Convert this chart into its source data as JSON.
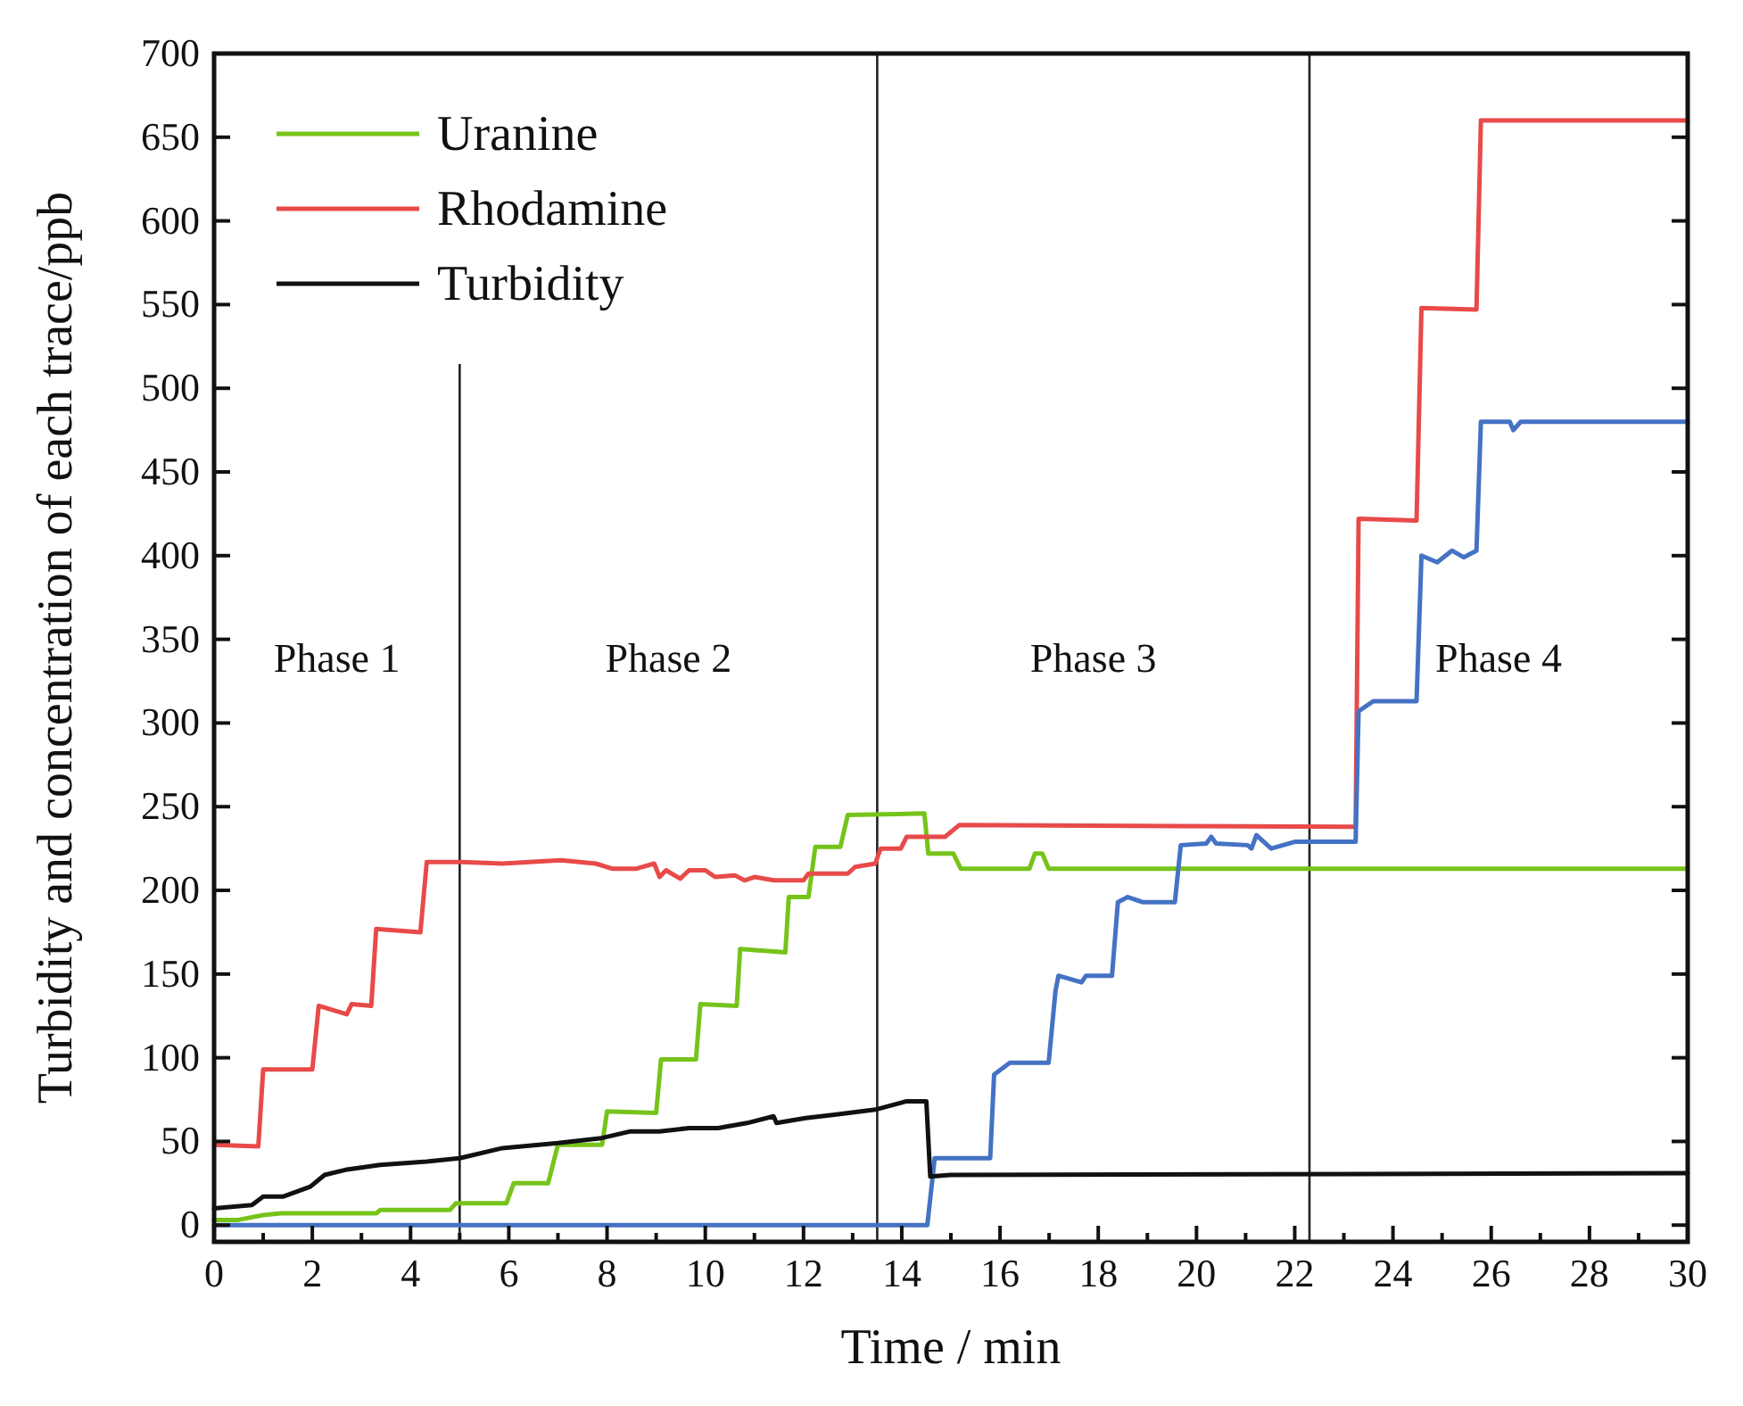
{
  "chart_data": {
    "type": "line",
    "xlabel": "Time / min",
    "ylabel": "Turbidity and concentration of each trace/ppb",
    "xlim": [
      0,
      30
    ],
    "ylim": [
      -10,
      700
    ],
    "xticks": [
      0,
      {
        "value": 1,
        "label": null
      },
      2,
      {
        "value": 3,
        "label": null
      },
      4,
      {
        "value": 5,
        "label": null
      },
      6,
      {
        "value": 7,
        "label": null
      },
      8,
      {
        "value": 9,
        "label": null
      },
      10,
      {
        "value": 11,
        "label": null
      },
      12,
      {
        "value": 13,
        "label": null
      },
      14,
      {
        "value": 15,
        "label": null
      },
      16,
      {
        "value": 17,
        "label": null
      },
      18,
      {
        "value": 19,
        "label": null
      },
      20,
      {
        "value": 21,
        "label": null
      },
      22,
      {
        "value": 23,
        "label": null
      },
      24,
      {
        "value": 25,
        "label": null
      },
      26,
      {
        "value": 27,
        "label": null
      },
      28,
      {
        "value": 29,
        "label": null
      },
      30
    ],
    "yticks": [
      0,
      50,
      100,
      150,
      200,
      250,
      300,
      350,
      400,
      450,
      500,
      550,
      600,
      650,
      700
    ],
    "grid": false,
    "legend": "top left",
    "marker": "none",
    "line_style": "solid",
    "series": [
      {
        "name": "Uranine",
        "color": "#76c31a",
        "x": [
          0,
          0.47,
          1.0,
          1.36,
          3.3,
          3.38,
          4.8,
          4.92,
          5.95,
          6.1,
          6.8,
          7.0,
          7.9,
          8.0,
          9.0,
          9.1,
          9.81,
          9.9,
          10.64,
          10.71,
          11.63,
          11.7,
          12.1,
          12.24,
          12.75,
          12.9,
          14.46,
          14.54,
          15.05,
          15.2,
          16.6,
          16.71,
          16.86,
          16.99,
          30
        ],
        "values": [
          3,
          3,
          6,
          7,
          7,
          9,
          9,
          13,
          13,
          25,
          25,
          48,
          48,
          68,
          67,
          99,
          99,
          132,
          131,
          165,
          163,
          196,
          196,
          226,
          226,
          245,
          246,
          222,
          222,
          213,
          213,
          222,
          222,
          213,
          213
        ]
      },
      {
        "name": "Rhodamine",
        "color": "#e84a4a",
        "x": [
          0,
          0.9,
          1.0,
          2.0,
          2.13,
          2.7,
          2.8,
          3.2,
          3.3,
          4.2,
          4.33,
          5.04,
          5.87,
          7.06,
          7.77,
          8.1,
          8.6,
          8.96,
          9.07,
          9.2,
          9.49,
          9.67,
          10.0,
          10.2,
          10.6,
          10.8,
          11.0,
          11.4,
          12.0,
          12.1,
          12.9,
          13.05,
          13.46,
          13.57,
          13.98,
          14.1,
          14.88,
          15.17,
          23.24,
          23.3,
          24.48,
          24.58,
          25.7,
          25.79,
          30
        ],
        "values": [
          48,
          47,
          93,
          93,
          131,
          126,
          132,
          131,
          177,
          175,
          217,
          217,
          216,
          218,
          216,
          213,
          213,
          216,
          208,
          212,
          207,
          212,
          212,
          208,
          209,
          206,
          208,
          206,
          206,
          210,
          210,
          214,
          216,
          225,
          225,
          232,
          232,
          239,
          238,
          422,
          421,
          548,
          547,
          660,
          660
        ]
      },
      {
        "color": "#4472c4",
        "x": [
          0,
          14.52,
          14.67,
          15.8,
          15.88,
          16.2,
          16.99,
          17.13,
          17.19,
          17.66,
          17.75,
          18.28,
          18.4,
          18.6,
          18.9,
          19.56,
          19.68,
          20.2,
          20.3,
          20.4,
          21.04,
          21.12,
          21.22,
          21.52,
          22.0,
          23.24,
          23.3,
          23.6,
          24.48,
          24.58,
          24.9,
          25.2,
          25.44,
          25.7,
          25.79,
          26.38,
          26.45,
          26.6,
          30
        ],
        "values": [
          0,
          0,
          40,
          40,
          90,
          97,
          97,
          140,
          149,
          145,
          149,
          149,
          193,
          196,
          193,
          193,
          227,
          228,
          232,
          228,
          227,
          225,
          233,
          225,
          229,
          229,
          307,
          313,
          313,
          400,
          396,
          403,
          399,
          403,
          480,
          480,
          475,
          480,
          480
        ]
      },
      {
        "name": "Turbidity",
        "color": "#111111",
        "x": [
          0,
          0.77,
          1.0,
          1.4,
          1.96,
          2.25,
          2.67,
          3.38,
          4.33,
          5.0,
          5.87,
          7.0,
          7.89,
          8.48,
          9.07,
          9.67,
          10.26,
          10.85,
          11.39,
          11.45,
          12.04,
          12.63,
          13.46,
          14.1,
          14.5,
          14.58,
          14.99,
          30
        ],
        "values": [
          10,
          12,
          17,
          17,
          23,
          30,
          33,
          36,
          38,
          40,
          46,
          49,
          52,
          56,
          56,
          58,
          58,
          61,
          65,
          61,
          64,
          66,
          69,
          74,
          74,
          29,
          30,
          31
        ]
      }
    ],
    "ref_lines": [
      {
        "axis": "x",
        "value": 5
      },
      {
        "axis": "x",
        "value": 13.5
      },
      {
        "axis": "x",
        "value": 22.3
      }
    ],
    "annotations": [
      "Phase 1",
      "Phase 2",
      "Phase 3",
      "Phase 4"
    ]
  }
}
